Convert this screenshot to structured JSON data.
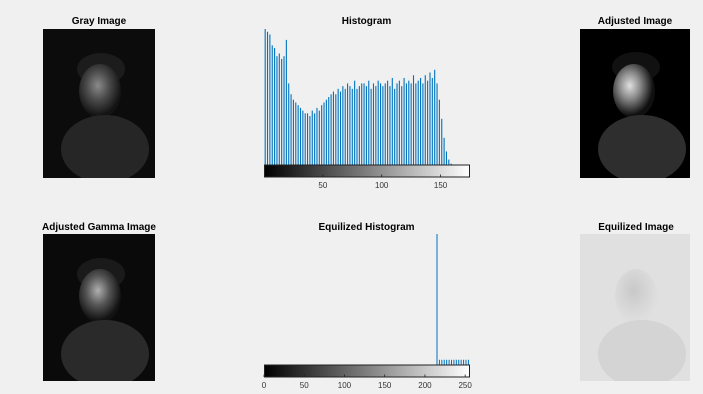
{
  "panels": {
    "gray": {
      "title": "Gray Image"
    },
    "adjusted": {
      "title": "Adjusted Image"
    },
    "gamma": {
      "title": "Adjusted Gamma Image"
    },
    "equalized": {
      "title": "Equilized Image"
    }
  },
  "chart_data": [
    {
      "type": "bar",
      "title": "Histogram",
      "xlabel": "",
      "ylabel": "",
      "xlim": [
        0,
        175
      ],
      "xticks": [
        50,
        100,
        150
      ],
      "color": "#0072bd",
      "colorbar": true,
      "x": [
        1,
        3,
        5,
        7,
        9,
        11,
        13,
        15,
        17,
        19,
        21,
        23,
        25,
        27,
        29,
        31,
        33,
        35,
        37,
        39,
        41,
        43,
        45,
        47,
        49,
        51,
        53,
        55,
        57,
        59,
        61,
        63,
        65,
        67,
        69,
        71,
        73,
        75,
        77,
        79,
        81,
        83,
        85,
        87,
        89,
        91,
        93,
        95,
        97,
        99,
        101,
        103,
        105,
        107,
        109,
        111,
        113,
        115,
        117,
        119,
        121,
        123,
        125,
        127,
        129,
        131,
        133,
        135,
        137,
        139,
        141,
        143,
        145,
        147,
        149,
        151,
        153,
        155,
        157,
        159
      ],
      "values": [
        100,
        98,
        96,
        88,
        86,
        80,
        82,
        78,
        80,
        92,
        60,
        52,
        48,
        46,
        44,
        42,
        40,
        38,
        38,
        36,
        40,
        38,
        42,
        40,
        44,
        46,
        48,
        50,
        52,
        54,
        52,
        56,
        54,
        58,
        56,
        60,
        58,
        56,
        62,
        56,
        58,
        60,
        60,
        58,
        62,
        56,
        60,
        58,
        62,
        60,
        58,
        60,
        62,
        58,
        64,
        56,
        60,
        62,
        58,
        64,
        60,
        62,
        60,
        66,
        60,
        62,
        64,
        60,
        66,
        62,
        68,
        64,
        70,
        60,
        48,
        34,
        20,
        10,
        4,
        1
      ]
    },
    {
      "type": "bar",
      "title": "Equilized Histogram",
      "xlabel": "",
      "ylabel": "",
      "xlim": [
        0,
        256
      ],
      "xticks": [
        0,
        50,
        100,
        150,
        200,
        250
      ],
      "color": "#0072bd",
      "colorbar": true,
      "x": [
        215,
        218,
        221,
        224,
        227,
        230,
        233,
        236,
        239,
        242,
        245,
        248,
        251,
        254
      ],
      "values": [
        100,
        4,
        4,
        4,
        4,
        4,
        4,
        4,
        4,
        4,
        4,
        4,
        4,
        4
      ]
    }
  ]
}
